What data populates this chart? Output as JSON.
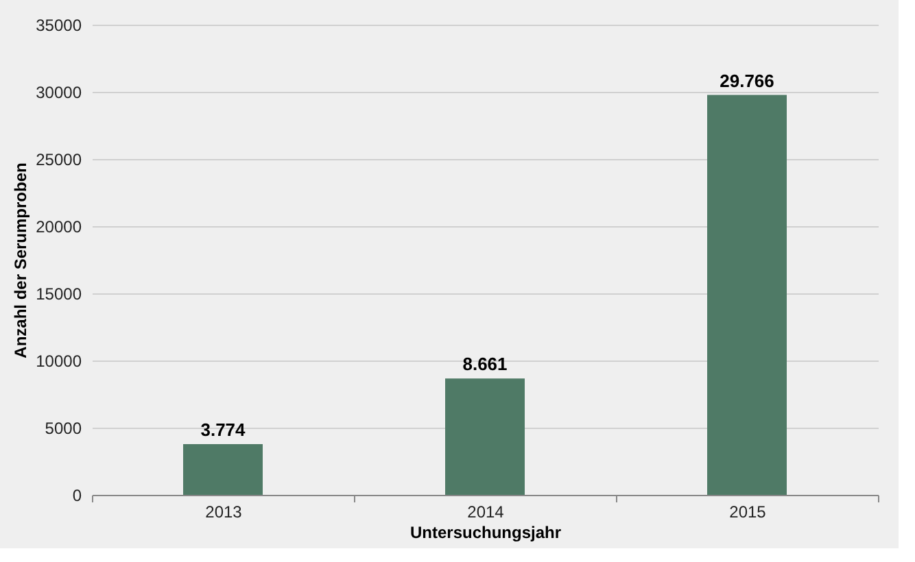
{
  "chart_data": {
    "type": "bar",
    "xlabel": "Untersuchungsjahr",
    "ylabel": "Anzahl der Serumproben",
    "categories": [
      "2013",
      "2014",
      "2015"
    ],
    "values": [
      3774,
      8661,
      29766
    ],
    "value_labels": [
      "3.774",
      "8.661",
      "29.766"
    ],
    "color": "#4f7a66",
    "ylim": [
      0,
      35000
    ],
    "yticks": [
      0,
      5000,
      10000,
      15000,
      20000,
      25000,
      30000,
      35000
    ],
    "grid": "y"
  }
}
